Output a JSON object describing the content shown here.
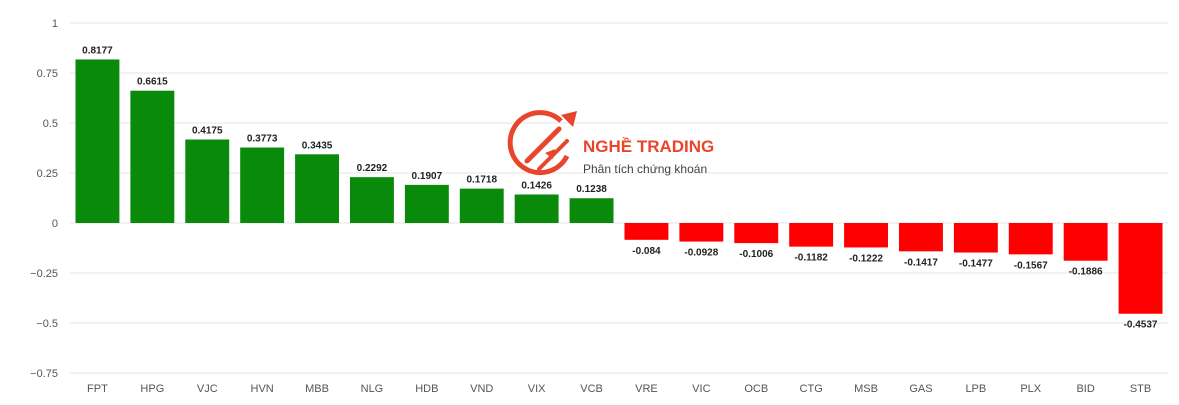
{
  "chart_data": {
    "type": "bar",
    "categories": [
      "FPT",
      "HPG",
      "VJC",
      "HVN",
      "MBB",
      "NLG",
      "HDB",
      "VND",
      "VIX",
      "VCB",
      "VRE",
      "VIC",
      "OCB",
      "CTG",
      "MSB",
      "GAS",
      "LPB",
      "PLX",
      "BID",
      "STB"
    ],
    "values": [
      0.8177,
      0.6615,
      0.4175,
      0.3773,
      0.3435,
      0.2292,
      0.1907,
      0.1718,
      0.1426,
      0.1238,
      -0.084,
      -0.0928,
      -0.1006,
      -0.1182,
      -0.1222,
      -0.1417,
      -0.1477,
      -0.1567,
      -0.1886,
      -0.4537
    ],
    "value_labels": [
      "0.8177",
      "0.6615",
      "0.4175",
      "0.3773",
      "0.3435",
      "0.2292",
      "0.1907",
      "0.1718",
      "0.1426",
      "0.1238",
      "-0.084",
      "-0.0928",
      "-0.1006",
      "-0.1182",
      "-0.1222",
      "-0.1417",
      "-0.1477",
      "-0.1567",
      "-0.1886",
      "-0.4537"
    ],
    "y_ticks": [
      1,
      0.75,
      0.5,
      0.25,
      0,
      -0.25,
      -0.5,
      -0.75
    ],
    "y_tick_labels": [
      "1",
      "0.75",
      "0.5",
      "0.25",
      "0",
      "−0.25",
      "−0.5",
      "−0.75"
    ],
    "ylim": [
      -0.75,
      1
    ],
    "title": "",
    "xlabel": "",
    "ylabel": "",
    "grid": true,
    "legend": "none",
    "colors": {
      "positive": "#0a8a0a",
      "negative": "#ff0000",
      "grid": "#e6e6e6"
    }
  },
  "watermark": {
    "brand": "NGHỀ TRADING",
    "tagline": "Phân tích chứng khoán",
    "color": "#e8361c"
  }
}
